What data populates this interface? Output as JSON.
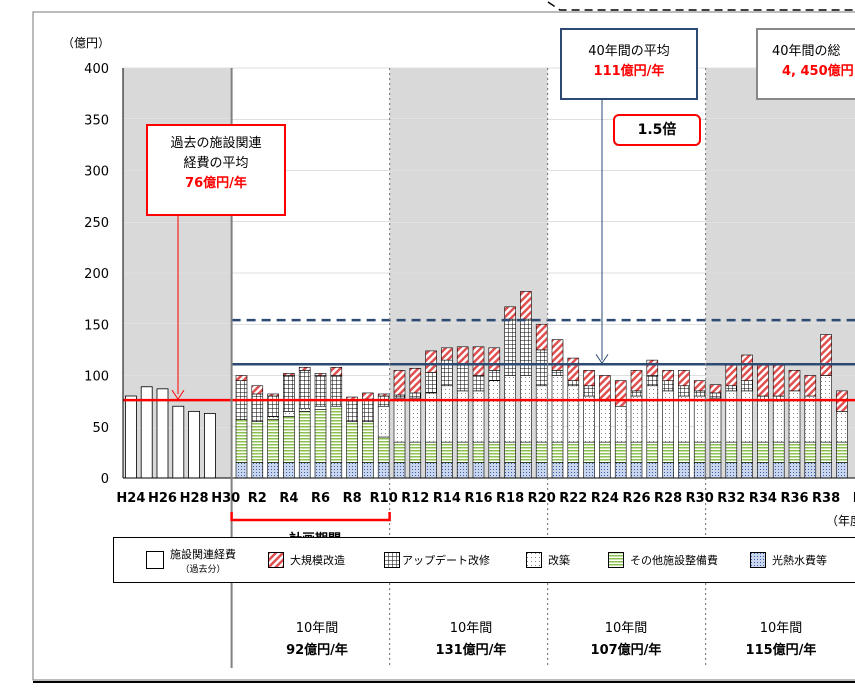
{
  "chart_data": {
    "type": "bar",
    "stacked": true,
    "ylabel": "（億円）",
    "xlabel": "（年度）",
    "ylim": [
      0,
      400
    ],
    "yticks": [
      0,
      50,
      100,
      150,
      200,
      250,
      300,
      350,
      400
    ],
    "grid": "horizontal",
    "x_tick_labels": [
      "H24",
      "H26",
      "H28",
      "H30",
      "R2",
      "R4",
      "R6",
      "R8",
      "R10",
      "R12",
      "R14",
      "R16",
      "R18",
      "R20",
      "R22",
      "R24",
      "R26",
      "R28",
      "R30",
      "R32",
      "R34",
      "R36",
      "R38",
      "R"
    ],
    "past_years": [
      "H24",
      "H25",
      "H26",
      "H27",
      "H28",
      "H29",
      "H30"
    ],
    "past_values": [
      80,
      89,
      87,
      70,
      65,
      63,
      0
    ],
    "plan_years": [
      "R1",
      "R2",
      "R3",
      "R4",
      "R5",
      "R6",
      "R7",
      "R8",
      "R9",
      "R10",
      "R11",
      "R12",
      "R13",
      "R14",
      "R15",
      "R16",
      "R17",
      "R18",
      "R19",
      "R20",
      "R21",
      "R22",
      "R23",
      "R24",
      "R25",
      "R26",
      "R27",
      "R28",
      "R29",
      "R30",
      "R31",
      "R32",
      "R33",
      "R34",
      "R35",
      "R36",
      "R37",
      "R38",
      "R39"
    ],
    "series": [
      {
        "name": "光熱水費等",
        "key": "kounetsu",
        "color": "#9fb4d8",
        "values": [
          15,
          15,
          15,
          15,
          15,
          15,
          15,
          15,
          15,
          15,
          15,
          15,
          15,
          15,
          15,
          15,
          15,
          15,
          15,
          15,
          15,
          15,
          15,
          15,
          15,
          15,
          15,
          15,
          15,
          15,
          15,
          15,
          15,
          15,
          15,
          15,
          15,
          15,
          15
        ]
      },
      {
        "name": "その他施設整備費",
        "key": "sonota",
        "color": "#9ecb6b",
        "values": [
          42,
          40,
          42,
          45,
          50,
          52,
          55,
          40,
          40,
          25,
          20,
          20,
          20,
          20,
          20,
          20,
          20,
          20,
          20,
          20,
          20,
          20,
          20,
          20,
          20,
          20,
          20,
          20,
          20,
          20,
          20,
          20,
          20,
          20,
          20,
          20,
          20,
          20,
          20
        ]
      },
      {
        "name": "改築",
        "key": "kaichiku",
        "color": "#f2f2f2",
        "values": [
          0,
          0,
          3,
          5,
          3,
          3,
          0,
          0,
          0,
          30,
          43,
          43,
          48,
          55,
          50,
          50,
          60,
          65,
          65,
          55,
          65,
          55,
          45,
          40,
          35,
          45,
          55,
          50,
          45,
          45,
          43,
          50,
          50,
          40,
          40,
          50,
          45,
          65,
          30
        ]
      },
      {
        "name": "アップデート改修",
        "key": "update",
        "color": "#ffffff",
        "values": [
          38,
          27,
          20,
          35,
          37,
          30,
          30,
          20,
          22,
          10,
          3,
          5,
          20,
          25,
          25,
          15,
          10,
          55,
          55,
          35,
          5,
          5,
          10,
          0,
          0,
          5,
          10,
          10,
          10,
          5,
          5,
          5,
          10,
          5,
          5,
          0,
          0,
          0,
          0
        ]
      },
      {
        "name": "大規模改造",
        "key": "daikibo",
        "color": "#f4a8a8",
        "values": [
          5,
          8,
          2,
          2,
          3,
          2,
          8,
          4,
          6,
          2,
          24,
          24,
          21,
          12,
          18,
          28,
          22,
          12,
          27,
          25,
          30,
          22,
          15,
          25,
          25,
          20,
          15,
          10,
          15,
          10,
          8,
          20,
          25,
          30,
          30,
          20,
          20,
          40,
          20
        ]
      }
    ],
    "legend": [
      {
        "label": "施設関連経費",
        "sub": "（過去分）",
        "key": "past"
      },
      {
        "label": "大規模改造",
        "key": "daikibo"
      },
      {
        "label": "アップデート改修",
        "key": "update"
      },
      {
        "label": "改築",
        "key": "kaichiku"
      },
      {
        "label": "その他施設整備費",
        "key": "sonota"
      },
      {
        "label": "光熱水費等",
        "key": "kounetsu"
      }
    ],
    "reference_lines": [
      {
        "name": "past_average",
        "value": 76,
        "color": "#ff0000"
      },
      {
        "name": "40y_average",
        "value": 111,
        "color": "#2d4a73"
      },
      {
        "name": "dashed_level",
        "value": 154,
        "color": "#2d4a73"
      }
    ],
    "annotations": {
      "past_avg": {
        "line1": "過去の施設関連",
        "line2": "経費の平均",
        "value": "76億円/年"
      },
      "avg40": {
        "line1": "40年間の平均",
        "value": "111億円/年"
      },
      "total40": {
        "line1": "40年間の総",
        "value": "4, 450億円"
      },
      "ratio": "1.5倍",
      "plan_period": "計画期間"
    },
    "decade_summaries": [
      {
        "label": "10年間",
        "value": "92億円/年"
      },
      {
        "label": "10年間",
        "value": "131億円/年"
      },
      {
        "label": "10年間",
        "value": "107億円/年"
      },
      {
        "label": "10年間",
        "value": "115億円/年"
      }
    ]
  }
}
